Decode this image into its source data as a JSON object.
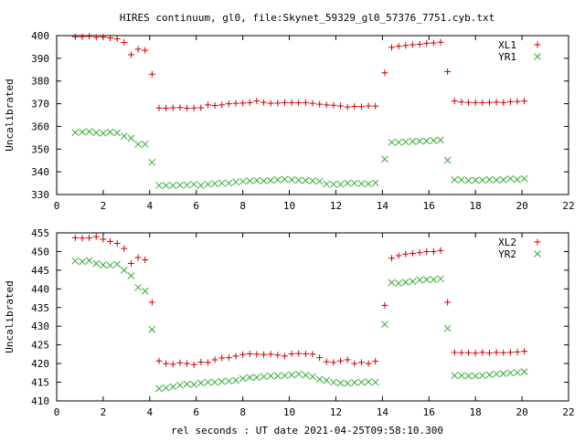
{
  "page": {
    "title": "HIRES continuum, gl0, file:Skynet_59329_gl0_57376_7751.cyb.txt",
    "xlabel": "rel seconds : UT date 2021-04-25T09:58:10.300"
  },
  "chart_data": [
    {
      "type": "scatter",
      "ylabel": "Uncalibrated",
      "xlim": [
        0,
        22
      ],
      "ylim": [
        330,
        400
      ],
      "xticks": [
        0,
        2,
        4,
        6,
        8,
        10,
        12,
        14,
        16,
        18,
        20,
        22
      ],
      "yticks": [
        330,
        340,
        350,
        360,
        370,
        380,
        390,
        400
      ],
      "grid": false,
      "legend": "top-right",
      "series": [
        {
          "name": "XL1",
          "marker": "plus",
          "color": "#cc0000",
          "x": [
            0.8,
            1.1,
            1.4,
            1.7,
            2.0,
            2.3,
            2.6,
            2.9,
            3.2,
            3.5,
            3.8,
            4.1,
            4.4,
            4.7,
            5.0,
            5.3,
            5.6,
            5.9,
            6.2,
            6.5,
            6.8,
            7.1,
            7.4,
            7.7,
            8.0,
            8.3,
            8.6,
            8.9,
            9.2,
            9.5,
            9.8,
            10.1,
            10.4,
            10.7,
            11.0,
            11.3,
            11.6,
            11.9,
            12.2,
            12.5,
            12.8,
            13.1,
            13.4,
            13.7,
            14.1,
            14.4,
            14.7,
            15.0,
            15.3,
            15.6,
            15.9,
            16.2,
            16.5,
            16.8,
            17.1,
            17.4,
            17.7,
            18.0,
            18.3,
            18.6,
            18.9,
            19.2,
            19.5,
            19.8,
            20.1
          ],
          "y": [
            399.5,
            399.5,
            399.7,
            399.3,
            399.4,
            399.0,
            398.6,
            397.0,
            391.6,
            394.0,
            393.5,
            383.0,
            368.1,
            368.0,
            368.2,
            368.3,
            368.0,
            368.1,
            368.2,
            369.5,
            369.2,
            369.5,
            370.0,
            370.2,
            370.3,
            370.5,
            371.2,
            370.6,
            370.2,
            370.3,
            370.5,
            370.5,
            370.4,
            370.5,
            370.2,
            369.8,
            369.5,
            369.3,
            369.0,
            368.5,
            368.8,
            368.7,
            369.0,
            368.9,
            383.6,
            394.8,
            395.3,
            395.6,
            396.0,
            396.2,
            396.6,
            396.8,
            397.1,
            384.1,
            371.2,
            370.8,
            370.6,
            370.5,
            370.5,
            370.6,
            370.7,
            370.5,
            370.9,
            371.0,
            371.2
          ]
        },
        {
          "name": "YR1",
          "marker": "cross",
          "color": "#33aa33",
          "x": [
            0.8,
            1.1,
            1.4,
            1.7,
            2.0,
            2.3,
            2.6,
            2.9,
            3.2,
            3.5,
            3.8,
            4.1,
            4.4,
            4.7,
            5.0,
            5.3,
            5.6,
            5.9,
            6.2,
            6.5,
            6.8,
            7.1,
            7.4,
            7.7,
            8.0,
            8.3,
            8.6,
            8.9,
            9.2,
            9.5,
            9.8,
            10.1,
            10.4,
            10.7,
            11.0,
            11.3,
            11.6,
            11.9,
            12.2,
            12.5,
            12.8,
            13.1,
            13.4,
            13.7,
            14.1,
            14.4,
            14.7,
            15.0,
            15.3,
            15.6,
            15.9,
            16.2,
            16.5,
            16.8,
            17.1,
            17.4,
            17.7,
            18.0,
            18.3,
            18.6,
            18.9,
            19.2,
            19.5,
            19.8,
            20.1
          ],
          "y": [
            357.3,
            357.5,
            357.7,
            357.3,
            357.0,
            357.5,
            357.2,
            355.7,
            354.8,
            352.1,
            352.2,
            344.2,
            334.0,
            334.0,
            334.0,
            334.1,
            334.2,
            334.5,
            334.0,
            334.5,
            334.8,
            335.0,
            335.0,
            335.5,
            335.8,
            336.0,
            336.2,
            336.0,
            336.2,
            336.5,
            336.7,
            336.5,
            336.3,
            336.2,
            336.0,
            335.8,
            334.6,
            334.5,
            334.5,
            335.0,
            335.0,
            334.8,
            334.7,
            335.1,
            345.6,
            353.0,
            353.0,
            353.2,
            353.4,
            353.5,
            353.6,
            353.8,
            354.0,
            345.1,
            336.5,
            336.5,
            336.2,
            336.3,
            336.3,
            336.6,
            336.4,
            336.5,
            337.0,
            336.6,
            337.0
          ]
        }
      ]
    },
    {
      "type": "scatter",
      "ylabel": "Uncalibrated",
      "xlim": [
        0,
        22
      ],
      "ylim": [
        410,
        455
      ],
      "xticks": [
        0,
        2,
        4,
        6,
        8,
        10,
        12,
        14,
        16,
        18,
        20,
        22
      ],
      "yticks": [
        410,
        415,
        420,
        425,
        430,
        435,
        440,
        445,
        450,
        455
      ],
      "grid": false,
      "legend": "top-right",
      "series": [
        {
          "name": "XL2",
          "marker": "plus",
          "color": "#cc0000",
          "x": [
            0.8,
            1.1,
            1.4,
            1.7,
            2.0,
            2.3,
            2.6,
            2.9,
            3.2,
            3.5,
            3.8,
            4.1,
            4.4,
            4.7,
            5.0,
            5.3,
            5.6,
            5.9,
            6.2,
            6.5,
            6.8,
            7.1,
            7.4,
            7.7,
            8.0,
            8.3,
            8.6,
            8.9,
            9.2,
            9.5,
            9.8,
            10.1,
            10.4,
            10.7,
            11.0,
            11.3,
            11.6,
            11.9,
            12.2,
            12.5,
            12.8,
            13.1,
            13.4,
            13.7,
            14.1,
            14.4,
            14.7,
            15.0,
            15.3,
            15.6,
            15.9,
            16.2,
            16.5,
            16.8,
            17.1,
            17.4,
            17.7,
            18.0,
            18.3,
            18.6,
            18.9,
            19.2,
            19.5,
            19.8,
            20.1
          ],
          "y": [
            453.7,
            453.6,
            453.7,
            454.0,
            453.3,
            452.7,
            452.2,
            450.8,
            446.8,
            448.4,
            447.8,
            436.4,
            420.7,
            420.0,
            419.8,
            420.2,
            420.0,
            419.7,
            420.4,
            420.3,
            421.0,
            421.5,
            421.6,
            422.0,
            422.4,
            422.6,
            422.5,
            422.4,
            422.5,
            422.3,
            422.0,
            422.6,
            422.7,
            422.6,
            422.5,
            421.6,
            420.5,
            420.3,
            420.7,
            421.0,
            420.0,
            420.3,
            420.0,
            420.6,
            435.6,
            448.2,
            448.9,
            449.3,
            449.5,
            449.7,
            450.0,
            450.0,
            450.3,
            436.4,
            423.0,
            422.9,
            422.9,
            422.8,
            423.0,
            422.8,
            423.0,
            422.9,
            423.0,
            423.1,
            423.3
          ]
        },
        {
          "name": "YR2",
          "marker": "cross",
          "color": "#33aa33",
          "x": [
            0.8,
            1.1,
            1.4,
            1.7,
            2.0,
            2.3,
            2.6,
            2.9,
            3.2,
            3.5,
            3.8,
            4.1,
            4.4,
            4.7,
            5.0,
            5.3,
            5.6,
            5.9,
            6.2,
            6.5,
            6.8,
            7.1,
            7.4,
            7.7,
            8.0,
            8.3,
            8.6,
            8.9,
            9.2,
            9.5,
            9.8,
            10.1,
            10.4,
            10.7,
            11.0,
            11.3,
            11.6,
            11.9,
            12.2,
            12.5,
            12.8,
            13.1,
            13.4,
            13.7,
            14.1,
            14.4,
            14.7,
            15.0,
            15.3,
            15.6,
            15.9,
            16.2,
            16.5,
            16.8,
            17.1,
            17.4,
            17.7,
            18.0,
            18.3,
            18.6,
            18.9,
            19.2,
            19.5,
            19.8,
            20.1
          ],
          "y": [
            447.5,
            447.3,
            447.6,
            446.8,
            446.4,
            446.3,
            446.6,
            445.0,
            443.5,
            440.4,
            439.4,
            429.1,
            413.3,
            413.5,
            413.8,
            414.2,
            414.5,
            414.4,
            414.8,
            415.0,
            415.0,
            415.2,
            415.3,
            415.5,
            416.0,
            416.3,
            416.3,
            416.5,
            416.7,
            416.7,
            416.8,
            417.0,
            417.2,
            416.9,
            416.5,
            415.8,
            415.5,
            415.0,
            414.8,
            414.7,
            414.9,
            415.0,
            415.1,
            415.0,
            430.5,
            441.7,
            441.5,
            441.8,
            442.0,
            442.4,
            442.5,
            442.5,
            442.7,
            429.4,
            416.8,
            416.8,
            416.7,
            416.7,
            416.8,
            417.0,
            417.2,
            417.3,
            417.5,
            417.6,
            417.8
          ]
        }
      ]
    }
  ]
}
